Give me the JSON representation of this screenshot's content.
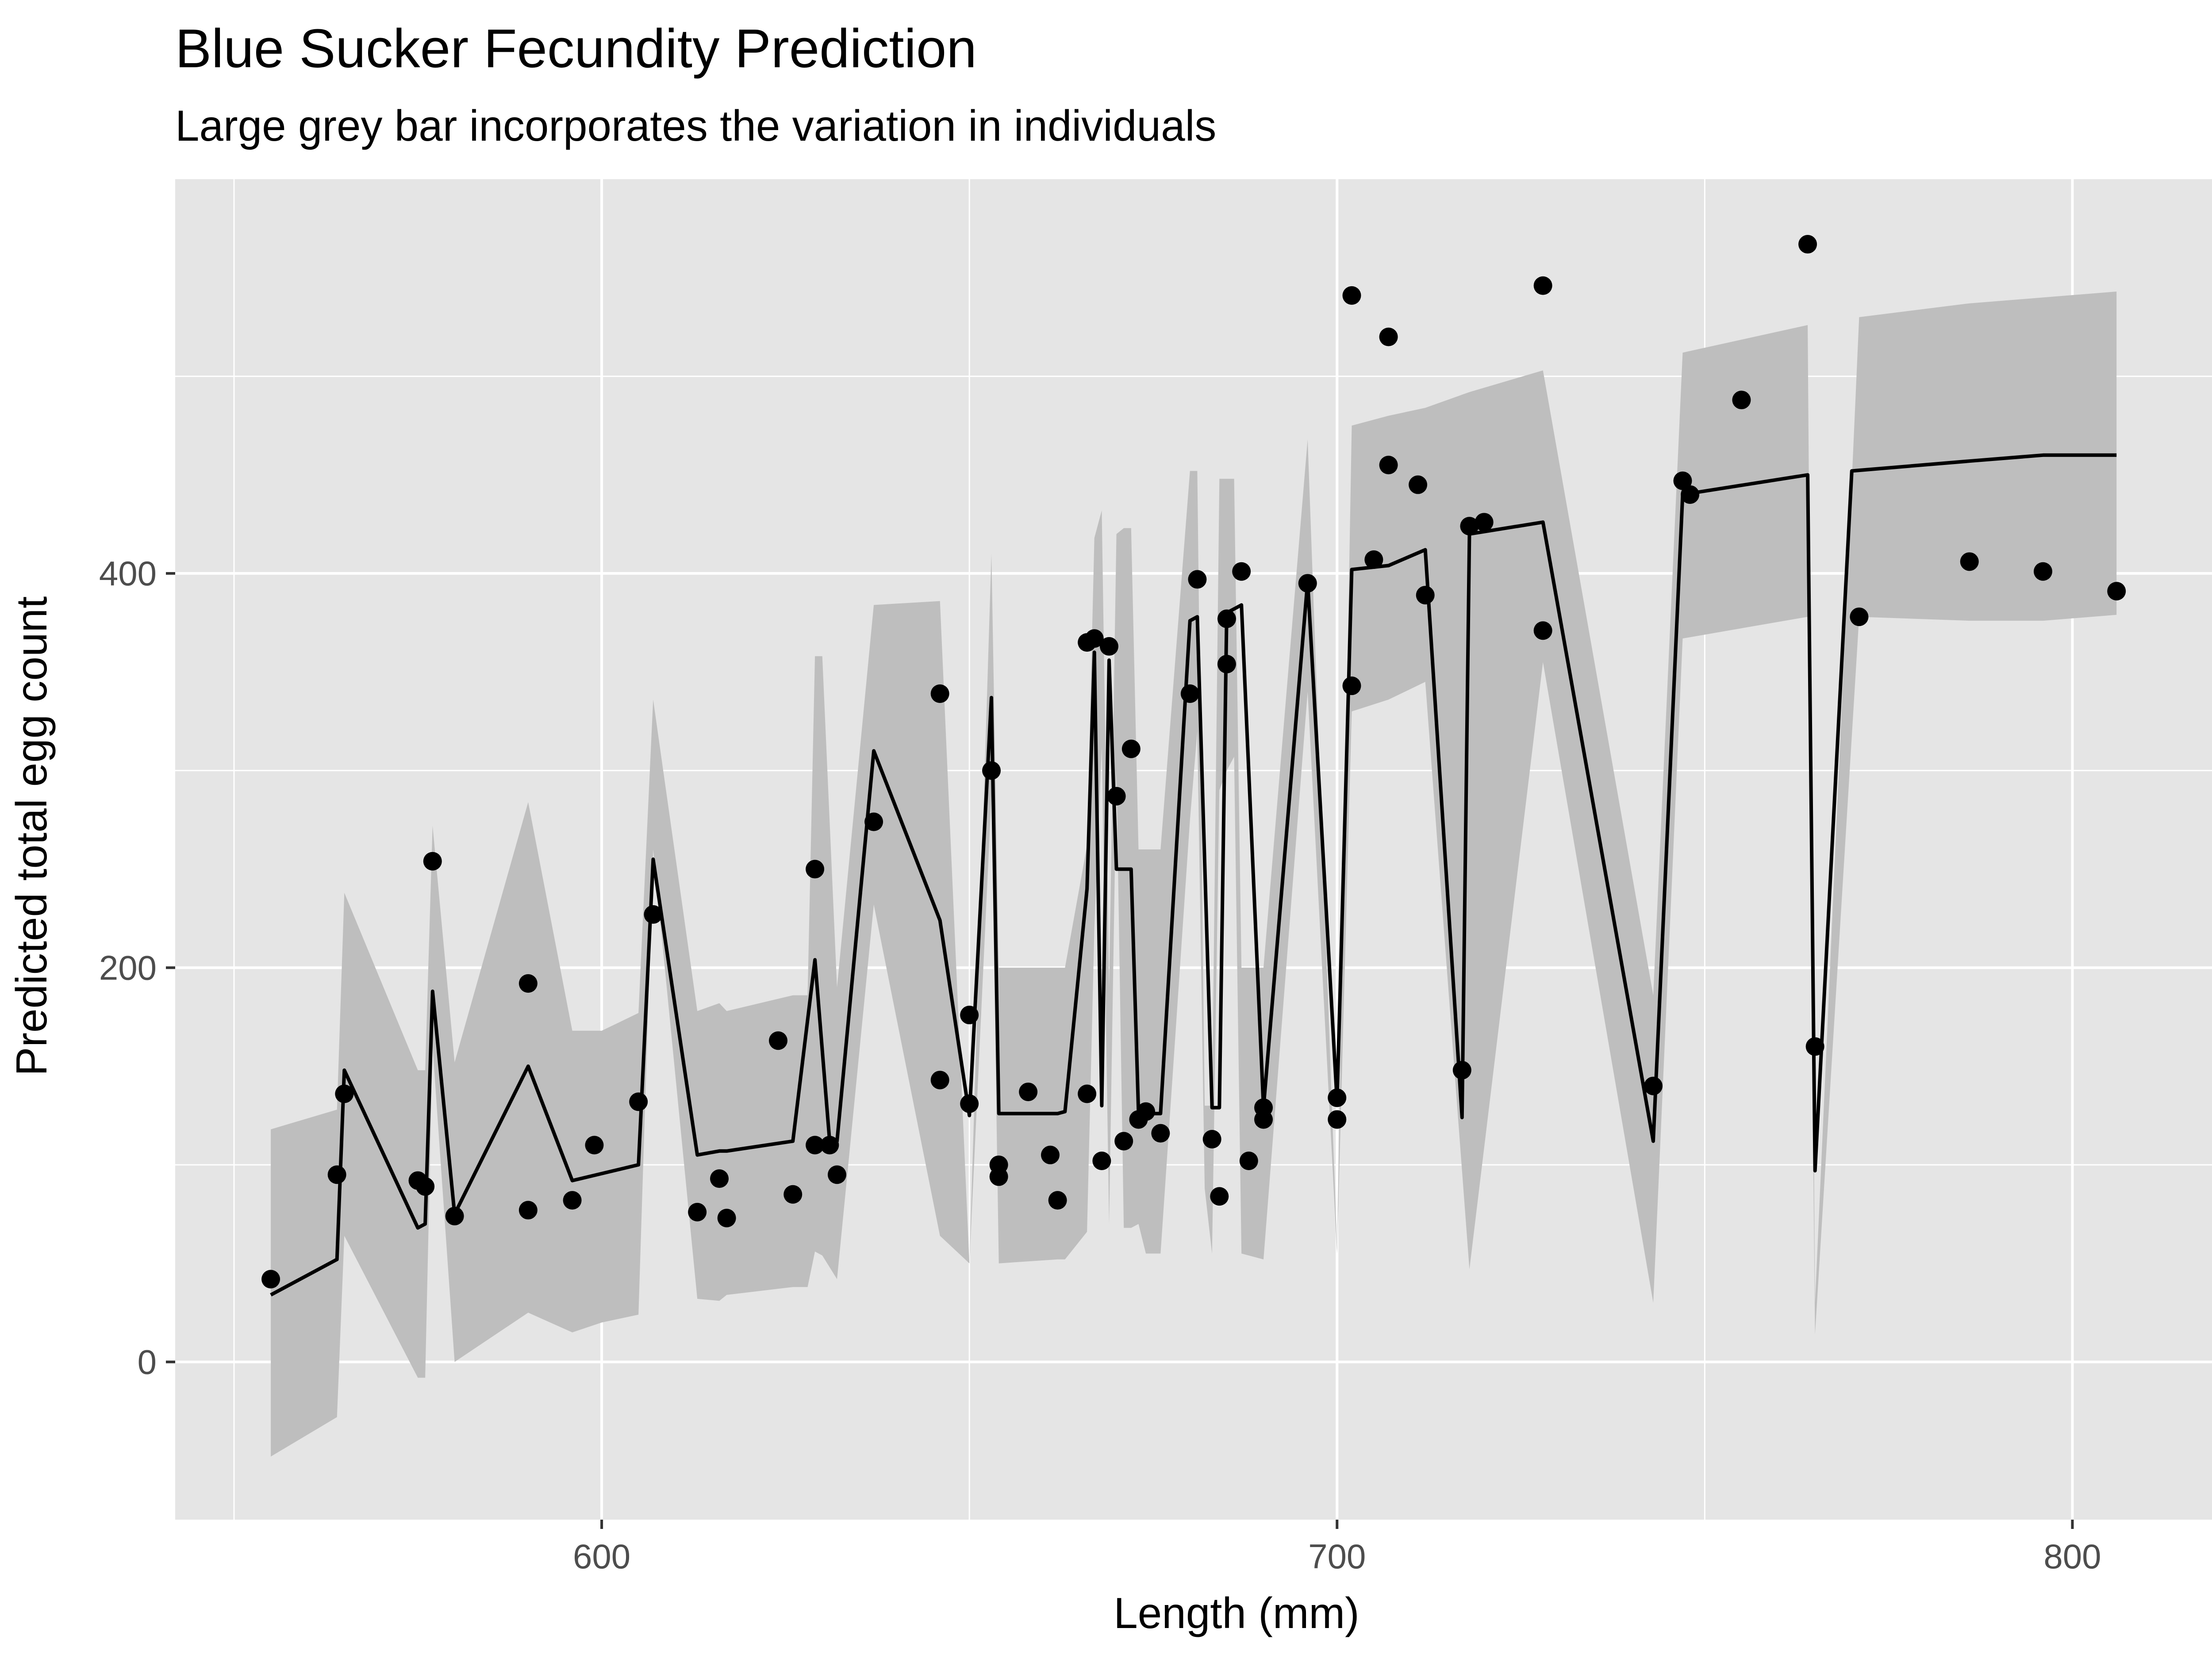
{
  "chart_data": {
    "type": "line",
    "title": "Blue Sucker Fecundity Prediction",
    "subtitle": "Large grey bar incorporates the variation in individuals",
    "xlabel": "Length (mm)",
    "ylabel": "Predicted total egg count",
    "xlim": [
      542,
      825
    ],
    "ylim": [
      -80,
      600
    ],
    "x_ticks": [
      600,
      700,
      800
    ],
    "y_ticks": [
      0,
      200,
      400
    ],
    "x_minor": [
      550,
      650,
      750
    ],
    "y_minor": [
      100,
      300,
      500
    ],
    "grid": true,
    "colors": {
      "panel": "#e5e5e5",
      "grid": "#ffffff",
      "ribbon": "#bebebe",
      "line": "#000000",
      "points": "#000000",
      "tick_label": "#4d4d4d"
    },
    "series": [
      {
        "type": "ribbon",
        "x": [
          555,
          564,
          565,
          575,
          576,
          577,
          580,
          590,
          596,
          600,
          605,
          607,
          613,
          616,
          617,
          626,
          628,
          629,
          630,
          632,
          637,
          646,
          650,
          653,
          654,
          662,
          663,
          666,
          667,
          668,
          669,
          670,
          671,
          672,
          673,
          674,
          676,
          680,
          681,
          682,
          683,
          684,
          685,
          686,
          687,
          690,
          696,
          700,
          702,
          707,
          712,
          718,
          728,
          743,
          747,
          764,
          765,
          771,
          786,
          796,
          806
        ],
        "lower": [
          -48,
          -28,
          64,
          -8,
          -8,
          160,
          0,
          25,
          15,
          20,
          24,
          260,
          32,
          31,
          34,
          38,
          38,
          56,
          54,
          42,
          232,
          64,
          50,
          287,
          50,
          52,
          52,
          66,
          220,
          312,
          70,
          300,
          68,
          68,
          70,
          55,
          55,
          275,
          320,
          88,
          55,
          290,
          300,
          307,
          55,
          52,
          340,
          55,
          330,
          336,
          345,
          47,
          355,
          30,
          367,
          378,
          14,
          378,
          376,
          376,
          379
        ],
        "upper": [
          118,
          128,
          238,
          148,
          148,
          272,
          152,
          284,
          168,
          168,
          177,
          336,
          178,
          182,
          178,
          186,
          186,
          358,
          358,
          190,
          384,
          386,
          50,
          410,
          200,
          200,
          200,
          262,
          418,
          432,
          190,
          420,
          423,
          423,
          260,
          260,
          260,
          452,
          452,
          130,
          130,
          448,
          448,
          448,
          200,
          200,
          468,
          58,
          475,
          480,
          484,
          492,
          503,
          186,
          512,
          526,
          30,
          530,
          537,
          540,
          543
        ]
      },
      {
        "type": "line",
        "x": [
          555,
          564,
          565,
          575,
          576,
          577,
          580,
          590,
          596,
          605,
          607,
          613,
          616,
          617,
          626,
          629,
          631,
          632,
          637,
          646,
          650,
          653,
          654,
          662,
          663,
          666,
          667,
          668,
          669,
          670,
          672,
          673,
          674,
          676,
          680,
          681,
          683,
          684,
          685,
          687,
          690,
          696,
          700,
          702,
          707,
          712,
          717,
          718,
          728,
          743,
          747,
          764,
          765,
          770,
          786,
          796,
          806
        ],
        "y": [
          34,
          52,
          148,
          68,
          70,
          188,
          75,
          150,
          92,
          100,
          255,
          105,
          107,
          107,
          112,
          204,
          112,
          112,
          310,
          224,
          125,
          337,
          126,
          126,
          127,
          240,
          360,
          130,
          356,
          250,
          250,
          126,
          126,
          126,
          376,
          378,
          129,
          129,
          380,
          384,
          129,
          396,
          132,
          402,
          404,
          412,
          124,
          420,
          426,
          112,
          440,
          450,
          97,
          452,
          457,
          460,
          460
        ]
      },
      {
        "type": "scatter",
        "x": [
          555,
          564,
          565,
          575,
          576,
          577,
          580,
          590,
          590,
          596,
          599,
          605,
          607,
          613,
          616,
          617,
          624,
          626,
          629,
          629,
          631,
          632,
          637,
          646,
          646,
          650,
          650,
          653,
          654,
          654,
          658,
          661,
          662,
          666,
          666,
          667,
          668,
          669,
          670,
          671,
          672,
          673,
          674,
          676,
          680,
          681,
          683,
          684,
          685,
          685,
          687,
          688,
          690,
          690,
          696,
          700,
          700,
          702,
          702,
          705,
          707,
          707,
          711,
          712,
          717,
          718,
          720,
          728,
          728,
          743,
          747,
          748,
          755,
          764,
          765,
          771,
          786,
          796,
          806
        ],
        "y": [
          42,
          95,
          136,
          92,
          89,
          254,
          74,
          192,
          77,
          82,
          110,
          132,
          227,
          76,
          93,
          73,
          163,
          85,
          250,
          110,
          110,
          95,
          274,
          339,
          143,
          176,
          131,
          300,
          100,
          94,
          137,
          105,
          82,
          365,
          136,
          367,
          102,
          363,
          287,
          112,
          311,
          123,
          127,
          116,
          339,
          397,
          113,
          84,
          354,
          377,
          401,
          102,
          123,
          129,
          395,
          123,
          134,
          343,
          541,
          407,
          520,
          455,
          445,
          389,
          148,
          424,
          426,
          546,
          371,
          140,
          447,
          440,
          488,
          567,
          160,
          378,
          406,
          401,
          391
        ]
      }
    ]
  }
}
